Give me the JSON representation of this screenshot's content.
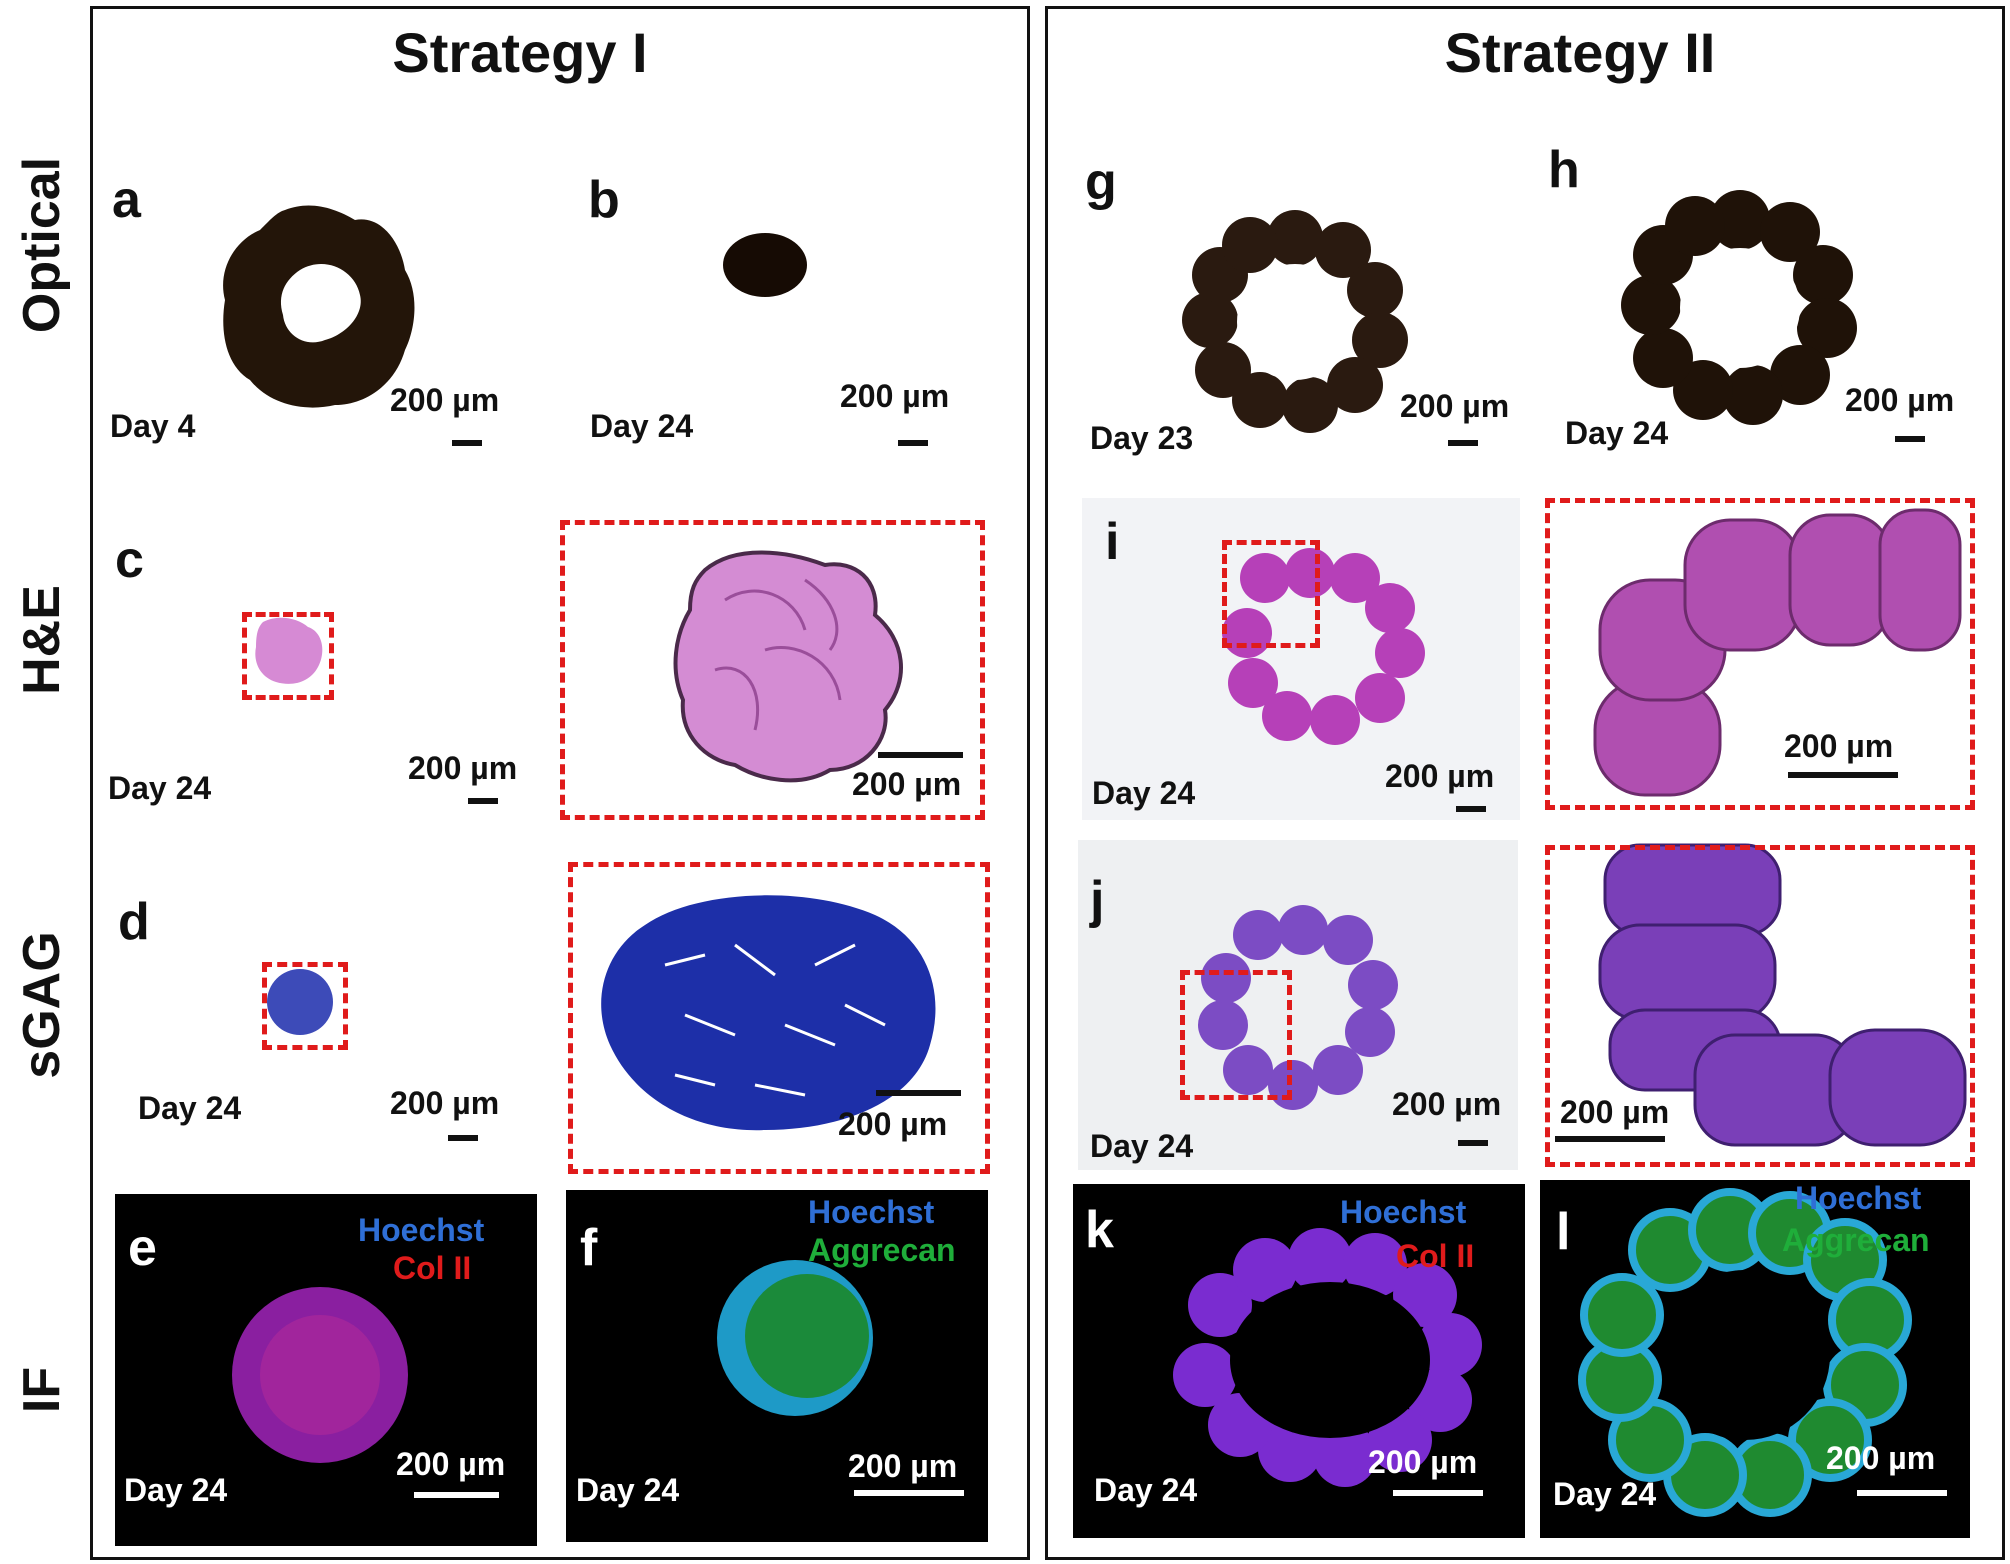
{
  "strategies": {
    "one": {
      "title": "Strategy I"
    },
    "two": {
      "title": "Strategy II"
    }
  },
  "row_labels": {
    "optical": "Optical",
    "he": "H&E",
    "sgag": "sGAG",
    "if": "IF"
  },
  "scale_label": "200 µm",
  "panels": {
    "a": {
      "letter": "a",
      "day": "Day 4"
    },
    "b": {
      "letter": "b",
      "day": "Day 24"
    },
    "c": {
      "letter": "c",
      "day": "Day 24"
    },
    "d": {
      "letter": "d",
      "day": "Day 24"
    },
    "e": {
      "letter": "e",
      "day": "Day 24",
      "stain1": "Hoechst",
      "stain2": "Col II"
    },
    "f": {
      "letter": "f",
      "day": "Day 24",
      "stain1": "Hoechst",
      "stain2": "Aggrecan"
    },
    "g": {
      "letter": "g",
      "day": "Day 23"
    },
    "h": {
      "letter": "h",
      "day": "Day 24"
    },
    "i": {
      "letter": "i",
      "day": "Day 24"
    },
    "j": {
      "letter": "j",
      "day": "Day 24"
    },
    "k": {
      "letter": "k",
      "day": "Day 24",
      "stain1": "Hoechst",
      "stain2": "Col II"
    },
    "l": {
      "letter": "l",
      "day": "Day 24",
      "stain1": "Hoechst",
      "stain2": "Aggrecan"
    }
  },
  "colors": {
    "dashed_box": "#e01b1b",
    "hoechst": "#2f6fd6",
    "col_ii": "#e01b1b",
    "aggrecan": "#1fae3a",
    "he_stain": "#c75bc4",
    "sgag_stain": "#1d2fa8"
  }
}
